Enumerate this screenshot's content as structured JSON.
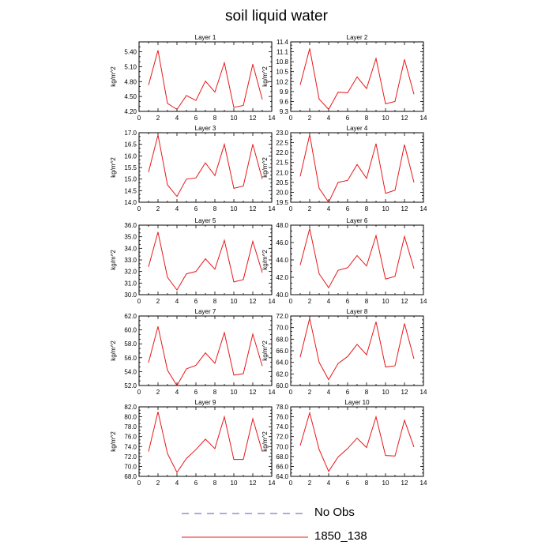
{
  "title": "soil liquid water",
  "legend": {
    "entries": [
      {
        "label": "No Obs",
        "color": "#5a5ab4",
        "dash": true
      },
      {
        "label": "1850_138",
        "color": "#e8181a",
        "dash": false
      }
    ]
  },
  "chart_data": [
    {
      "type": "line",
      "title": "Layer 1",
      "ylabel": "kg/m^2",
      "xlim": [
        0,
        14
      ],
      "ylim": [
        4.2,
        5.6
      ],
      "xticks": [
        0,
        2,
        4,
        6,
        8,
        10,
        12,
        14
      ],
      "yticks": [
        "4.20",
        "4.50",
        "4.80",
        "5.10",
        "5.40"
      ],
      "x": [
        1,
        2,
        3,
        4,
        5,
        6,
        7,
        8,
        9,
        10,
        11,
        12,
        13
      ],
      "series": [
        {
          "name": "1850_138",
          "color": "#e8181a",
          "values": [
            4.73,
            5.43,
            4.36,
            4.24,
            4.52,
            4.42,
            4.81,
            4.59,
            5.18,
            4.28,
            4.32,
            5.15,
            4.44
          ]
        }
      ]
    },
    {
      "type": "line",
      "title": "Layer 2",
      "ylabel": "kg/m^2",
      "xlim": [
        0,
        14
      ],
      "ylim": [
        9.3,
        11.4
      ],
      "xticks": [
        0,
        2,
        4,
        6,
        8,
        10,
        12,
        14
      ],
      "yticks": [
        "9.3",
        "9.6",
        "9.9",
        "10.2",
        "10.5",
        "10.8",
        "11.1",
        "11.4"
      ],
      "x": [
        1,
        2,
        3,
        4,
        5,
        6,
        7,
        8,
        9,
        10,
        11,
        12,
        13
      ],
      "series": [
        {
          "name": "1850_138",
          "color": "#e8181a",
          "values": [
            10.1,
            11.2,
            9.67,
            9.36,
            9.88,
            9.86,
            10.34,
            9.99,
            10.9,
            9.53,
            9.6,
            10.87,
            9.82
          ]
        }
      ]
    },
    {
      "type": "line",
      "title": "Layer 3",
      "ylabel": "kg/m^2",
      "xlim": [
        0,
        14
      ],
      "ylim": [
        14.0,
        17.0
      ],
      "xticks": [
        0,
        2,
        4,
        6,
        8,
        10,
        12,
        14
      ],
      "yticks": [
        "14.0",
        "14.5",
        "15.0",
        "15.5",
        "16.0",
        "16.5",
        "17.0"
      ],
      "x": [
        1,
        2,
        3,
        4,
        5,
        6,
        7,
        8,
        9,
        10,
        11,
        12,
        13
      ],
      "series": [
        {
          "name": "1850_138",
          "color": "#e8181a",
          "values": [
            15.3,
            16.9,
            14.75,
            14.25,
            15.0,
            15.05,
            15.7,
            15.15,
            16.5,
            14.6,
            14.7,
            16.5,
            15.0
          ]
        }
      ]
    },
    {
      "type": "line",
      "title": "Layer 4",
      "ylabel": "kg/m^2",
      "xlim": [
        0,
        14
      ],
      "ylim": [
        19.5,
        23.0
      ],
      "xticks": [
        0,
        2,
        4,
        6,
        8,
        10,
        12,
        14
      ],
      "yticks": [
        "19.5",
        "20.0",
        "20.5",
        "21.0",
        "21.5",
        "22.0",
        "22.5",
        "23.0"
      ],
      "x": [
        1,
        2,
        3,
        4,
        5,
        6,
        7,
        8,
        9,
        10,
        11,
        12,
        13
      ],
      "series": [
        {
          "name": "1850_138",
          "color": "#e8181a",
          "values": [
            20.8,
            22.9,
            20.2,
            19.5,
            20.5,
            20.6,
            21.4,
            20.7,
            22.45,
            19.95,
            20.1,
            22.4,
            20.5
          ]
        }
      ]
    },
    {
      "type": "line",
      "title": "Layer 5",
      "ylabel": "kg/m^2",
      "xlim": [
        0,
        14
      ],
      "ylim": [
        30.0,
        36.0
      ],
      "xticks": [
        0,
        2,
        4,
        6,
        8,
        10,
        12,
        14
      ],
      "yticks": [
        "30.0",
        "31.0",
        "32.0",
        "33.0",
        "34.0",
        "35.0",
        "36.0"
      ],
      "x": [
        1,
        2,
        3,
        4,
        5,
        6,
        7,
        8,
        9,
        10,
        11,
        12,
        13
      ],
      "series": [
        {
          "name": "1850_138",
          "color": "#e8181a",
          "values": [
            32.4,
            35.4,
            31.5,
            30.4,
            31.8,
            32.0,
            33.1,
            32.2,
            34.7,
            31.1,
            31.3,
            34.6,
            31.9
          ]
        }
      ]
    },
    {
      "type": "line",
      "title": "Layer 6",
      "ylabel": "kg/m^2",
      "xlim": [
        0,
        14
      ],
      "ylim": [
        40.0,
        48.0
      ],
      "xticks": [
        0,
        2,
        4,
        6,
        8,
        10,
        12,
        14
      ],
      "yticks": [
        "40.0",
        "42.0",
        "44.0",
        "46.0",
        "48.0"
      ],
      "x": [
        1,
        2,
        3,
        4,
        5,
        6,
        7,
        8,
        9,
        10,
        11,
        12,
        13
      ],
      "series": [
        {
          "name": "1850_138",
          "color": "#e8181a",
          "values": [
            43.4,
            47.6,
            42.4,
            40.8,
            42.8,
            43.1,
            44.5,
            43.3,
            46.8,
            41.8,
            42.1,
            46.7,
            43.0
          ]
        }
      ]
    },
    {
      "type": "line",
      "title": "Layer 7",
      "ylabel": "kg/m^2",
      "xlim": [
        0,
        14
      ],
      "ylim": [
        52.0,
        62.0
      ],
      "xticks": [
        0,
        2,
        4,
        6,
        8,
        10,
        12,
        14
      ],
      "yticks": [
        "52.0",
        "54.0",
        "56.0",
        "58.0",
        "60.0",
        "62.0"
      ],
      "x": [
        1,
        2,
        3,
        4,
        5,
        6,
        7,
        8,
        9,
        10,
        11,
        12,
        13
      ],
      "series": [
        {
          "name": "1850_138",
          "color": "#e8181a",
          "values": [
            55.3,
            60.5,
            54.2,
            52.0,
            54.4,
            54.9,
            56.7,
            55.2,
            59.6,
            53.5,
            53.7,
            59.4,
            54.8
          ]
        }
      ]
    },
    {
      "type": "line",
      "title": "Layer 8",
      "ylabel": "kg/m^2",
      "xlim": [
        0,
        14
      ],
      "ylim": [
        60.0,
        72.0
      ],
      "xticks": [
        0,
        2,
        4,
        6,
        8,
        10,
        12,
        14
      ],
      "yticks": [
        "60.0",
        "62.0",
        "64.0",
        "66.0",
        "68.0",
        "70.0",
        "72.0"
      ],
      "x": [
        1,
        2,
        3,
        4,
        5,
        6,
        7,
        8,
        9,
        10,
        11,
        12,
        13
      ],
      "series": [
        {
          "name": "1850_138",
          "color": "#e8181a",
          "values": [
            64.9,
            71.6,
            64.0,
            61.0,
            63.8,
            65.0,
            67.1,
            65.3,
            71.0,
            63.2,
            63.4,
            70.7,
            64.6
          ]
        }
      ]
    },
    {
      "type": "line",
      "title": "Layer 9",
      "ylabel": "kg/m^2",
      "xlim": [
        0,
        14
      ],
      "ylim": [
        68.0,
        82.0
      ],
      "xticks": [
        0,
        2,
        4,
        6,
        8,
        10,
        12,
        14
      ],
      "yticks": [
        "68.0",
        "70.0",
        "72.0",
        "74.0",
        "76.0",
        "78.0",
        "80.0",
        "82.0"
      ],
      "x": [
        1,
        2,
        3,
        4,
        5,
        6,
        7,
        8,
        9,
        10,
        11,
        12,
        13
      ],
      "series": [
        {
          "name": "1850_138",
          "color": "#e8181a",
          "values": [
            73.0,
            81.0,
            72.6,
            68.8,
            71.6,
            73.4,
            75.5,
            73.6,
            80.0,
            71.4,
            71.4,
            79.6,
            73.0
          ]
        }
      ]
    },
    {
      "type": "line",
      "title": "Layer 10",
      "ylabel": "kg/m^2",
      "xlim": [
        0,
        14
      ],
      "ylim": [
        64.0,
        78.0
      ],
      "xticks": [
        0,
        2,
        4,
        6,
        8,
        10,
        12,
        14
      ],
      "yticks": [
        "64.0",
        "66.0",
        "68.0",
        "70.0",
        "72.0",
        "74.0",
        "76.0",
        "78.0"
      ],
      "x": [
        1,
        2,
        3,
        4,
        5,
        6,
        7,
        8,
        9,
        10,
        11,
        12,
        13
      ],
      "series": [
        {
          "name": "1850_138",
          "color": "#e8181a",
          "values": [
            70.2,
            76.8,
            69.4,
            65.0,
            67.9,
            69.6,
            71.7,
            69.8,
            76.0,
            68.2,
            68.1,
            75.3,
            69.9
          ]
        }
      ]
    }
  ]
}
